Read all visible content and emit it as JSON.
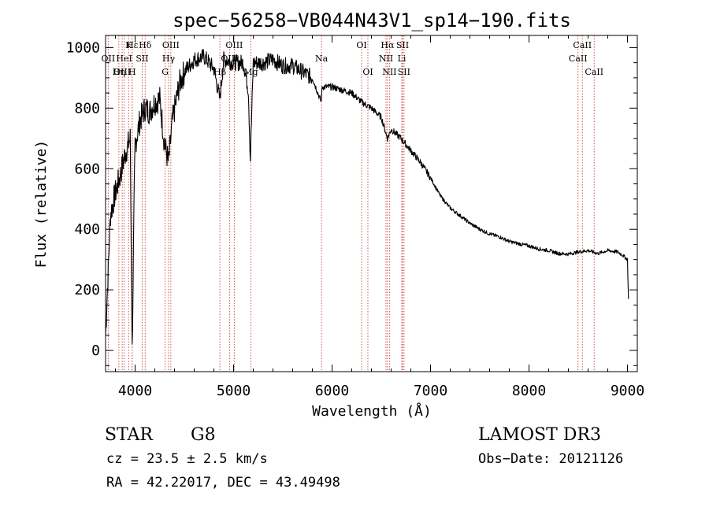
{
  "chart_data": {
    "type": "line",
    "title": "spec−56258−VB044N43V1_sp14−190.fits",
    "xlabel": "Wavelength (Å)",
    "ylabel": "Flux (relative)",
    "xlim": [
      3700,
      9100
    ],
    "ylim": [
      -70,
      1040
    ],
    "xticks": [
      {
        "value": 4000,
        "label": "4000"
      },
      {
        "value": 5000,
        "label": "5000"
      },
      {
        "value": 6000,
        "label": "6000"
      },
      {
        "value": 7000,
        "label": "7000"
      },
      {
        "value": 8000,
        "label": "8000"
      },
      {
        "value": 9000,
        "label": "9000"
      }
    ],
    "yticks": [
      {
        "value": 0,
        "label": "0"
      },
      {
        "value": 200,
        "label": "200"
      },
      {
        "value": 400,
        "label": "400"
      },
      {
        "value": 600,
        "label": "600"
      },
      {
        "value": 800,
        "label": "800"
      },
      {
        "value": 1000,
        "label": "1000"
      }
    ],
    "grid": false,
    "series": [
      {
        "name": "spectrum",
        "color": "#000000",
        "x": [
          3700,
          3750,
          3800,
          3850,
          3900,
          3950,
          3970,
          3990,
          4000,
          4050,
          4100,
          4150,
          4200,
          4250,
          4300,
          4340,
          4380,
          4450,
          4500,
          4600,
          4700,
          4800,
          4860,
          4900,
          5000,
          5100,
          5150,
          5170,
          5200,
          5300,
          5400,
          5500,
          5600,
          5700,
          5800,
          5890,
          5900,
          6000,
          6100,
          6200,
          6300,
          6400,
          6500,
          6563,
          6600,
          6700,
          6800,
          6900,
          7000,
          7100,
          7200,
          7300,
          7400,
          7500,
          7600,
          7700,
          7800,
          7900,
          8000,
          8100,
          8200,
          8300,
          8400,
          8500,
          8600,
          8700,
          8800,
          8900,
          8950,
          9000,
          9010
        ],
        "y": [
          50,
          450,
          520,
          580,
          650,
          700,
          0,
          500,
          680,
          760,
          800,
          790,
          820,
          830,
          680,
          620,
          760,
          880,
          920,
          960,
          970,
          930,
          830,
          960,
          950,
          950,
          860,
          630,
          950,
          950,
          960,
          940,
          940,
          920,
          900,
          820,
          870,
          870,
          860,
          850,
          820,
          800,
          770,
          700,
          730,
          700,
          660,
          620,
          570,
          510,
          470,
          445,
          420,
          400,
          385,
          375,
          360,
          352,
          345,
          335,
          330,
          320,
          318,
          325,
          330,
          320,
          330,
          325,
          315,
          300,
          170
        ]
      }
    ],
    "lines": [
      {
        "name": "Hε",
        "wavelength": 3970,
        "label_row": 1
      },
      {
        "name": "K",
        "wavelength": 3934,
        "label_row": 1
      },
      {
        "name": "Hδ",
        "wavelength": 4102,
        "label_row": 1
      },
      {
        "name": "OIII",
        "wavelength": 4363,
        "label_row": 1
      },
      {
        "name": "OIII",
        "wavelength": 5007,
        "label_row": 1
      },
      {
        "name": "OI",
        "wavelength": 6300,
        "label_row": 1
      },
      {
        "name": "Hα",
        "wavelength": 6563,
        "label_row": 1
      },
      {
        "name": "SII",
        "wavelength": 6716,
        "label_row": 1
      },
      {
        "name": "CaII",
        "wavelength": 8542,
        "label_row": 1
      },
      {
        "name": "OII",
        "wavelength": 3727,
        "label_row": 2
      },
      {
        "name": "HeI",
        "wavelength": 3889,
        "label_row": 2
      },
      {
        "name": "SII",
        "wavelength": 4072,
        "label_row": 2
      },
      {
        "name": "Hγ",
        "wavelength": 4340,
        "label_row": 2
      },
      {
        "name": "OIII",
        "wavelength": 4959,
        "label_row": 2
      },
      {
        "name": "Na",
        "wavelength": 5893,
        "label_row": 2
      },
      {
        "name": "NII",
        "wavelength": 6548,
        "label_row": 2
      },
      {
        "name": "Li",
        "wavelength": 6708,
        "label_row": 2
      },
      {
        "name": "CaII",
        "wavelength": 8498,
        "label_row": 2
      },
      {
        "name": "OIII",
        "wavelength": 3869,
        "label_row": 3
      },
      {
        "name": "Hη",
        "wavelength": 3835,
        "label_row": 3
      },
      {
        "name": "H",
        "wavelength": 3970,
        "label_row": 3
      },
      {
        "name": "G",
        "wavelength": 4305,
        "label_row": 3
      },
      {
        "name": "Hβ",
        "wavelength": 4861,
        "label_row": 3
      },
      {
        "name": "Mg",
        "wavelength": 5175,
        "label_row": 3
      },
      {
        "name": "OI",
        "wavelength": 6364,
        "label_row": 3
      },
      {
        "name": "NII",
        "wavelength": 6583,
        "label_row": 3
      },
      {
        "name": "SII",
        "wavelength": 6731,
        "label_row": 3
      },
      {
        "name": "CaII",
        "wavelength": 8662,
        "label_row": 3
      }
    ],
    "line_color": "#d0413a",
    "annotations": {
      "class": "STAR",
      "subclass": "G8",
      "survey": "LAMOST DR3",
      "cz": "cz = 23.5 ± 2.5 km/s",
      "obs_date": "Obs−Date: 20121126",
      "coords": "RA =  42.22017, DEC =  43.49498"
    }
  }
}
